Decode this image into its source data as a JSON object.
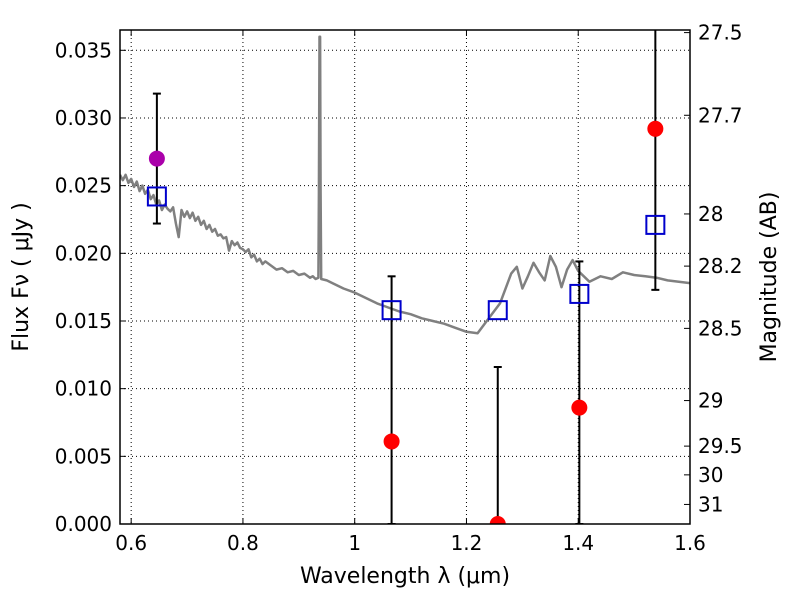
{
  "chart_data": {
    "type": "scatter",
    "xlabel": "Wavelength  λ (μm)",
    "ylabel": "Flux  Fν  ( μJy )",
    "ylabel_right": "Magnitude (AB)",
    "xlim": [
      0.58,
      1.6
    ],
    "ylim": [
      0.0,
      0.0365
    ],
    "grid": true,
    "x_ticks": [
      {
        "value": 0.6,
        "label": "0.6"
      },
      {
        "value": 0.8,
        "label": "0.8"
      },
      {
        "value": 1.0,
        "label": "1"
      },
      {
        "value": 1.2,
        "label": "1.2"
      },
      {
        "value": 1.4,
        "label": "1.4"
      },
      {
        "value": 1.6,
        "label": "1.6"
      }
    ],
    "y_ticks": [
      {
        "value": 0.0,
        "label": "0.000"
      },
      {
        "value": 0.005,
        "label": "0.005"
      },
      {
        "value": 0.01,
        "label": "0.010"
      },
      {
        "value": 0.015,
        "label": "0.015"
      },
      {
        "value": 0.02,
        "label": "0.020"
      },
      {
        "value": 0.025,
        "label": "0.025"
      },
      {
        "value": 0.03,
        "label": "0.030"
      },
      {
        "value": 0.035,
        "label": "0.035"
      }
    ],
    "right_ticks": [
      {
        "mag": 27.5,
        "label": "27.5"
      },
      {
        "mag": 27.7,
        "label": "27.7"
      },
      {
        "mag": 28.0,
        "label": "28"
      },
      {
        "mag": 28.2,
        "label": "28.2"
      },
      {
        "mag": 28.5,
        "label": "28.5"
      },
      {
        "mag": 29.0,
        "label": "29"
      },
      {
        "mag": 29.5,
        "label": "29.5"
      },
      {
        "mag": 30.0,
        "label": "30"
      },
      {
        "mag": 31.0,
        "label": "31"
      }
    ],
    "series": [
      {
        "kind": "line",
        "color": "#808080",
        "x": [
          0.58,
          0.585,
          0.59,
          0.595,
          0.6,
          0.605,
          0.61,
          0.615,
          0.62,
          0.625,
          0.63,
          0.635,
          0.64,
          0.645,
          0.65,
          0.655,
          0.66,
          0.665,
          0.67,
          0.675,
          0.68,
          0.685,
          0.69,
          0.695,
          0.7,
          0.705,
          0.71,
          0.715,
          0.72,
          0.725,
          0.73,
          0.735,
          0.74,
          0.745,
          0.75,
          0.755,
          0.76,
          0.765,
          0.77,
          0.775,
          0.78,
          0.785,
          0.79,
          0.795,
          0.8,
          0.805,
          0.81,
          0.815,
          0.82,
          0.825,
          0.83,
          0.835,
          0.84,
          0.85,
          0.86,
          0.87,
          0.88,
          0.89,
          0.9,
          0.91,
          0.92,
          0.925,
          0.93,
          0.935,
          0.936,
          0.937,
          0.938,
          0.939,
          0.94,
          0.95,
          0.96,
          0.98,
          1.0,
          1.02,
          1.04,
          1.06,
          1.08,
          1.1,
          1.12,
          1.14,
          1.16,
          1.18,
          1.2,
          1.22,
          1.24,
          1.26,
          1.28,
          1.29,
          1.3,
          1.31,
          1.32,
          1.33,
          1.34,
          1.35,
          1.36,
          1.37,
          1.38,
          1.39,
          1.4,
          1.42,
          1.44,
          1.46,
          1.48,
          1.5,
          1.52,
          1.54,
          1.56,
          1.58,
          1.6
        ],
        "y": [
          0.0258,
          0.0254,
          0.0258,
          0.0252,
          0.0255,
          0.0249,
          0.0253,
          0.0246,
          0.025,
          0.0244,
          0.0247,
          0.024,
          0.0243,
          0.0236,
          0.0239,
          0.0232,
          0.0236,
          0.0233,
          0.0231,
          0.0234,
          0.0222,
          0.0212,
          0.0232,
          0.0227,
          0.0231,
          0.0226,
          0.023,
          0.0224,
          0.0227,
          0.0221,
          0.0224,
          0.0218,
          0.0221,
          0.0216,
          0.0218,
          0.0213,
          0.0214,
          0.0211,
          0.0212,
          0.0202,
          0.0209,
          0.0206,
          0.0208,
          0.0204,
          0.0203,
          0.0201,
          0.0203,
          0.0197,
          0.0199,
          0.0194,
          0.0196,
          0.0192,
          0.0194,
          0.0191,
          0.0188,
          0.0189,
          0.0186,
          0.0187,
          0.0184,
          0.0185,
          0.0182,
          0.0183,
          0.0181,
          0.0182,
          0.0245,
          0.036,
          0.036,
          0.0245,
          0.0181,
          0.018,
          0.0178,
          0.0174,
          0.0171,
          0.0167,
          0.0163,
          0.016,
          0.0157,
          0.0155,
          0.0152,
          0.015,
          0.0148,
          0.0145,
          0.0142,
          0.0141,
          0.0152,
          0.0163,
          0.0185,
          0.019,
          0.0174,
          0.0183,
          0.0193,
          0.0186,
          0.018,
          0.0198,
          0.019,
          0.0175,
          0.0188,
          0.0195,
          0.0187,
          0.0179,
          0.0183,
          0.0181,
          0.0186,
          0.0184,
          0.0183,
          0.0182,
          0.018,
          0.0179,
          0.0178
        ]
      },
      {
        "kind": "errorbar-points",
        "marker": "circle",
        "color": "#ff0000",
        "points": [
          {
            "x": 1.066,
            "y": 0.0061,
            "err": 0.0122
          },
          {
            "x": 1.256,
            "y": 0.0,
            "err": 0.0116
          },
          {
            "x": 1.402,
            "y": 0.0086,
            "err": 0.0108
          },
          {
            "x": 1.538,
            "y": 0.0292,
            "err": 0.0119
          }
        ]
      },
      {
        "kind": "errorbar-points",
        "marker": "circle",
        "color": "#aa00aa",
        "points": [
          {
            "x": 0.646,
            "y": 0.027,
            "err": 0.0048
          }
        ]
      },
      {
        "kind": "points",
        "marker": "square",
        "color": "#0000cc",
        "points": [
          {
            "x": 0.646,
            "y": 0.0242
          },
          {
            "x": 1.066,
            "y": 0.0158
          },
          {
            "x": 1.256,
            "y": 0.0158
          },
          {
            "x": 1.402,
            "y": 0.017
          },
          {
            "x": 1.538,
            "y": 0.0221
          }
        ]
      }
    ]
  }
}
